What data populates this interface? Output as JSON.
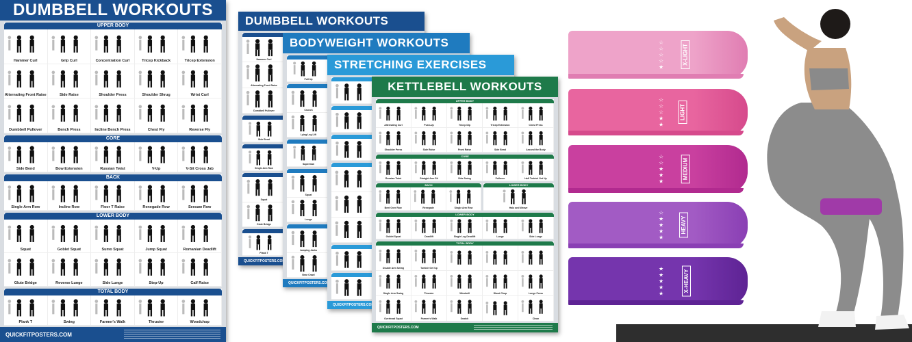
{
  "posters": [
    {
      "id": "dumbbell-main",
      "title": "DUMBBELL WORKOUTS",
      "color": "#1a4f8f",
      "footer": "QUICKFITPOSTERS.COM",
      "sections": [
        {
          "title": "UPPER BODY",
          "cols": 5,
          "items": [
            "Hammer Curl",
            "Grip Curl",
            "Concentration Curl",
            "Tricep Kickback",
            "Tricep Extension",
            "Alternating Front Raise",
            "Side Raise",
            "Shoulder Press",
            "Shoulder Shrug",
            "Wrist Curl",
            "Dumbbell Pullover",
            "Bench Press",
            "Incline Bench Press",
            "Chest Fly",
            "Reverse Fly"
          ]
        },
        {
          "title": "CORE",
          "cols": 5,
          "items": [
            "Side Bend",
            "Bow Extension",
            "Russian Twist",
            "V-Up",
            "V-Sit Cross Jab"
          ]
        },
        {
          "title": "BACK",
          "cols": 5,
          "items": [
            "Single Arm Row",
            "Incline Row",
            "Floor T Raise",
            "Renegade Row",
            "Seesaw Row"
          ]
        },
        {
          "title": "LOWER BODY",
          "cols": 5,
          "items": [
            "Squat",
            "Goblet Squat",
            "Sumo Squat",
            "Jump Squat",
            "Romanian Deadlift",
            "Glute Bridge",
            "Reverse Lunge",
            "Side Lunge",
            "Step-Up",
            "Calf Raise"
          ]
        },
        {
          "title": "TOTAL BODY",
          "cols": 5,
          "items": [
            "Plank T",
            "Swing",
            "Farmer's Walk",
            "Thruster",
            "Woodchop"
          ]
        }
      ]
    },
    {
      "id": "dumbbell-stack",
      "title": "DUMBBELL WORKOUTS",
      "color": "#1a4f8f",
      "footer": "QUICKFITPOSTERS.COM",
      "sections": [
        {
          "title": "",
          "cols": 1,
          "items": [
            "Hammer Curl",
            "Alternating Front Raise",
            "Dumbbell Pullover"
          ]
        },
        {
          "title": "",
          "cols": 1,
          "items": [
            "Side Bend"
          ]
        },
        {
          "title": "",
          "cols": 1,
          "items": [
            "Single Arm Row"
          ]
        },
        {
          "title": "",
          "cols": 1,
          "items": [
            "Squat",
            "Glute Bridge"
          ]
        },
        {
          "title": "",
          "cols": 1,
          "items": [
            "Plank T"
          ]
        }
      ]
    },
    {
      "id": "bodyweight",
      "title": "BODYWEIGHT WORKOUTS",
      "color": "#1f7bbf",
      "footer": "QUICKFITPOSTERS.COM",
      "sections": [
        {
          "title": "",
          "cols": 1,
          "items": [
            "Pull Up"
          ]
        },
        {
          "title": "",
          "cols": 1,
          "items": [
            "Crunch",
            "Lying Leg Lift"
          ]
        },
        {
          "title": "",
          "cols": 1,
          "items": [
            "Superman"
          ]
        },
        {
          "title": "",
          "cols": 1,
          "items": [
            "Squat",
            "Lunge"
          ]
        },
        {
          "title": "",
          "cols": 1,
          "items": [
            "Jumping Jacks",
            "Bear Crawl"
          ]
        }
      ]
    },
    {
      "id": "stretching",
      "title": "STRETCHING EXERCISES",
      "color": "#2a9ad8",
      "footer": "QUICKFITPOSTERS.COM",
      "sections": [
        {
          "title": "",
          "cols": 1,
          "items": [
            ""
          ]
        },
        {
          "title": "",
          "cols": 1,
          "items": [
            ""
          ]
        },
        {
          "title": "",
          "cols": 1,
          "items": [
            ""
          ]
        },
        {
          "title": "",
          "cols": 1,
          "items": [
            "",
            "",
            ""
          ]
        },
        {
          "title": "",
          "cols": 1,
          "items": [
            ""
          ]
        },
        {
          "title": "",
          "cols": 1,
          "items": [
            ""
          ]
        }
      ]
    },
    {
      "id": "kettlebell",
      "title": "KETTLEBELL WORKOUTS",
      "color": "#1e7a4a",
      "footer": "QUICKFITPOSTERS.COM",
      "sections": [
        {
          "title": "UPPER BODY",
          "cols": 5,
          "items": [
            "Alternating Curl",
            "Push-Up",
            "Tricep Dip",
            "Tricep Extension",
            "Chest Press",
            "Shoulder Press",
            "Side Raise",
            "Front Raise",
            "Side Bend",
            "Around the Body"
          ]
        },
        {
          "title": "CORE",
          "cols": 5,
          "items": [
            "Russian Twist",
            "Straight Arm Sit",
            "Side Swing",
            "Pullover",
            "Half Turkish Get Up"
          ]
        },
        {
          "title": "BACK",
          "cols": 3,
          "items": [
            "Bent Over Row",
            "Renegade",
            "Single Arm Row"
          ],
          "pair": "LOWER BODY",
          "pair_items": [
            "Halo and Weave"
          ]
        },
        {
          "title": "LOWER BODY",
          "cols": 5,
          "items": [
            "Goblet Squat",
            "Deadlift",
            "Single Leg Deadlift",
            "Lunge",
            "Side Lunge"
          ]
        },
        {
          "title": "TOTAL BODY",
          "cols": 5,
          "items": [
            "Double Arm Swing",
            "Turkish Get Up",
            "",
            "",
            "",
            "Single Arm Swing",
            "Thruster",
            "Windmill",
            "Wood Chop",
            "Lunge Press",
            "Overhead Squat",
            "Farmer's Walk",
            "Snatch",
            "",
            "Clean"
          ]
        }
      ]
    }
  ],
  "bands": [
    {
      "label": "X-LIGHT",
      "stars_filled": 1,
      "stars_total": 5,
      "color": "#eea3c9",
      "lip": "#e07db2"
    },
    {
      "label": "LIGHT",
      "stars_filled": 2,
      "stars_total": 5,
      "color": "#e8659f",
      "lip": "#d64a8c"
    },
    {
      "label": "MEDIUM",
      "stars_filled": 3,
      "stars_total": 5,
      "color": "#c9409f",
      "lip": "#b12a8f"
    },
    {
      "label": "HEAVY",
      "stars_filled": 4,
      "stars_total": 5,
      "color": "#a25bc4",
      "lip": "#8a3fb4"
    },
    {
      "label": "X-HEAVY",
      "stars_filled": 5,
      "stars_total": 5,
      "color": "#7535ad",
      "lip": "#5e2394"
    }
  ]
}
